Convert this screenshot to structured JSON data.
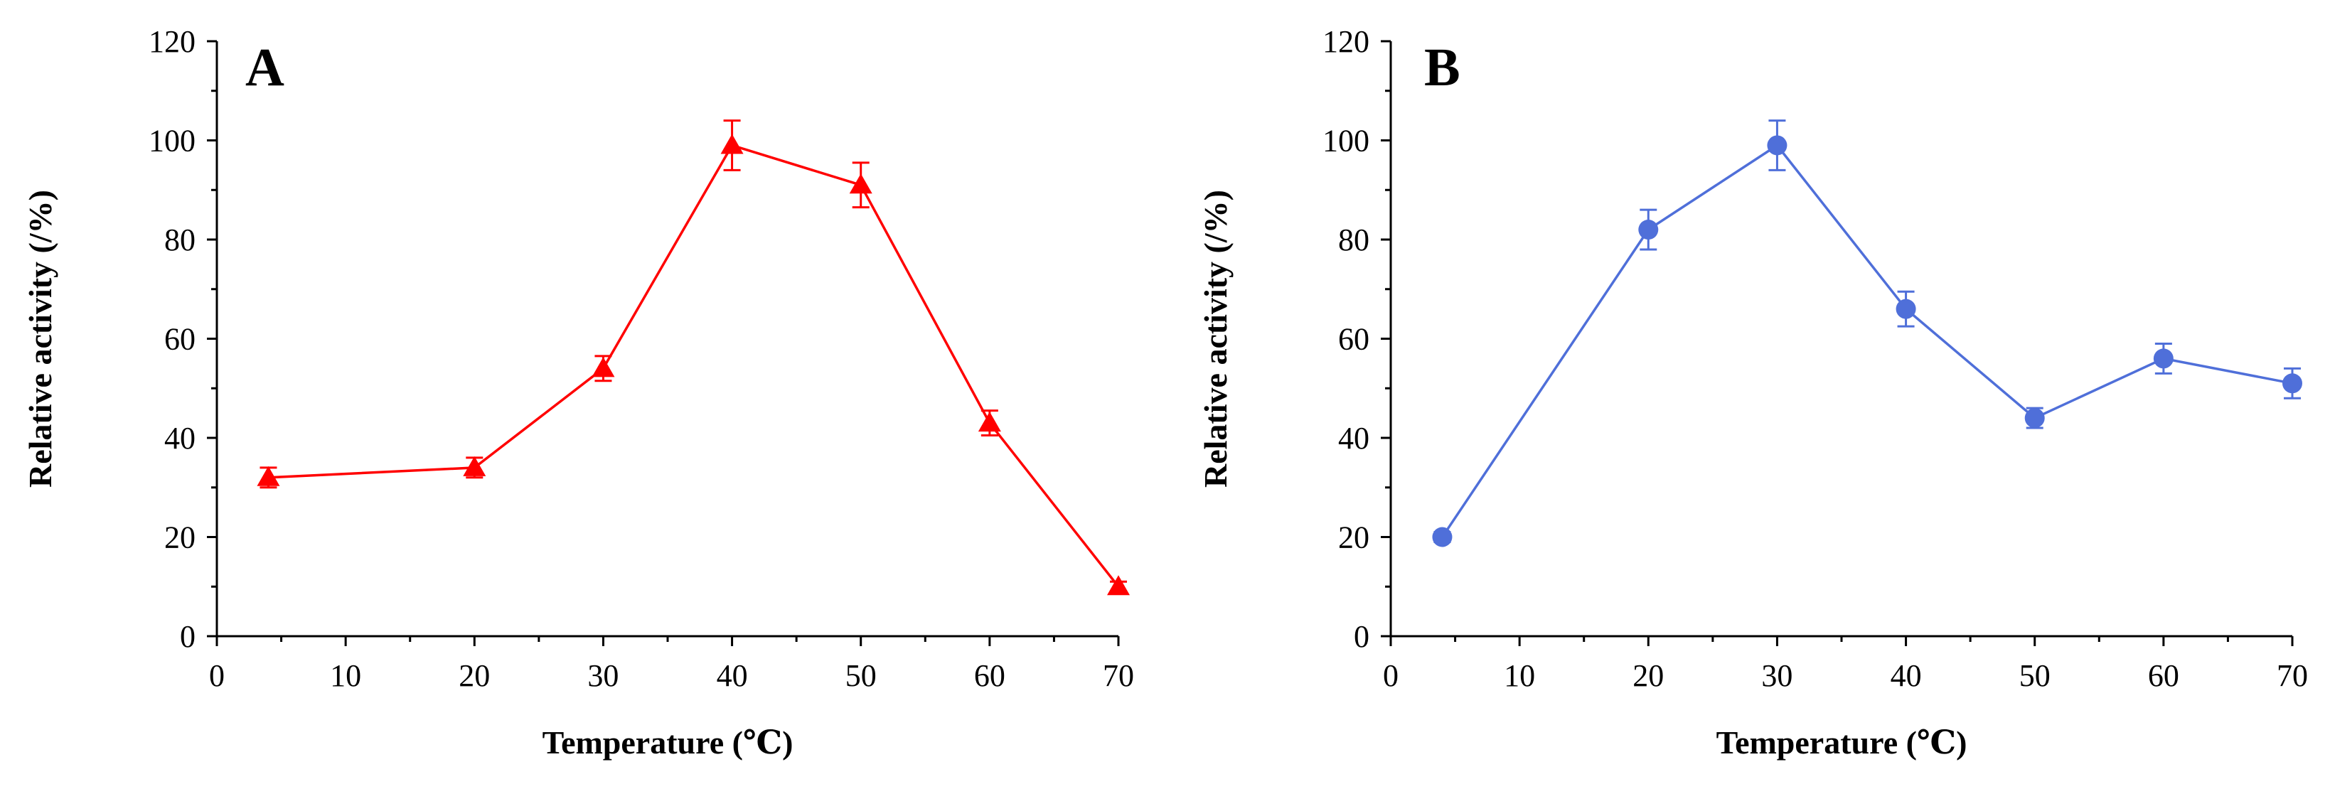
{
  "chart_data": [
    {
      "type": "line",
      "panel_label": "A",
      "xlabel": "Temperature (℃)",
      "ylabel": "Relative activity  (/%)",
      "xlim": [
        0,
        70
      ],
      "ylim": [
        0,
        120
      ],
      "xticks": [
        0,
        10,
        20,
        30,
        40,
        50,
        60,
        70
      ],
      "yticks": [
        0,
        20,
        40,
        60,
        80,
        100,
        120
      ],
      "color": "#ff0000",
      "marker": "triangle",
      "series": [
        {
          "name": "A",
          "x": [
            4,
            20,
            30,
            40,
            50,
            60,
            70
          ],
          "y": [
            32,
            34,
            54,
            99,
            91,
            43,
            10
          ],
          "err": [
            2,
            2,
            2.5,
            5,
            4.5,
            2.5,
            1
          ]
        }
      ]
    },
    {
      "type": "line",
      "panel_label": "B",
      "xlabel": "Temperature (℃)",
      "ylabel": "Relative activity  (/%)",
      "xlim": [
        0,
        70
      ],
      "ylim": [
        0,
        120
      ],
      "xticks": [
        0,
        10,
        20,
        30,
        40,
        50,
        60,
        70
      ],
      "yticks": [
        0,
        20,
        40,
        60,
        80,
        100,
        120
      ],
      "color": "#4f6fd9",
      "marker": "circle",
      "series": [
        {
          "name": "B",
          "x": [
            4,
            20,
            30,
            40,
            50,
            60,
            70
          ],
          "y": [
            20,
            82,
            99,
            66,
            44,
            56,
            51
          ],
          "err": [
            1,
            4,
            5,
            3.5,
            2,
            3,
            3
          ]
        }
      ]
    }
  ]
}
